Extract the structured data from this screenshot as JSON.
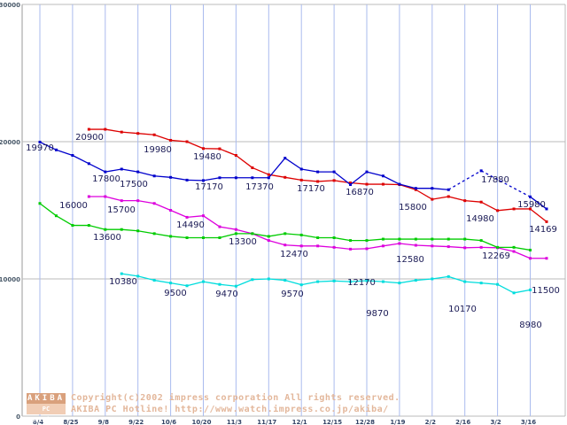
{
  "chart_data": {
    "type": "line",
    "title": "",
    "xlabel": "",
    "ylabel": "",
    "ylim": [
      0,
      30000
    ],
    "yticks": [
      0,
      10000,
      20000,
      30000
    ],
    "grid": true,
    "legend": "none",
    "x_labels": [
      "8/4",
      "8/25",
      "9/8",
      "9/22",
      "10/6",
      "10/20",
      "11/3",
      "11/17",
      "12/1",
      "12/15",
      "12/28",
      "1/19",
      "2/2",
      "2/16",
      "3/2",
      "3/16"
    ],
    "n_points": 32,
    "series": [
      {
        "color": "#dd0000",
        "values": [
          null,
          null,
          null,
          20900,
          20900,
          20700,
          20600,
          20500,
          20100,
          20000,
          19500,
          19480,
          19000,
          18100,
          17600,
          17400,
          17200,
          17100,
          17170,
          17000,
          16900,
          16900,
          16870,
          16500,
          15800,
          16000,
          15700,
          15600,
          14980,
          15100,
          15100,
          14169
        ]
      },
      {
        "color": "#0000cc",
        "values": [
          19970,
          19400,
          19000,
          18400,
          17800,
          18000,
          17800,
          17500,
          17400,
          17200,
          17170,
          17370,
          17370,
          17370,
          17370,
          18800,
          18000,
          17800,
          17800,
          16870,
          17800,
          17500,
          16900,
          16600,
          16600,
          16500,
          null,
          17880,
          null,
          null,
          15980,
          15100
        ]
      },
      {
        "color": "#dd00dd",
        "values": [
          null,
          null,
          null,
          16000,
          16000,
          15700,
          15700,
          15500,
          15000,
          14490,
          14600,
          13800,
          13600,
          13300,
          12800,
          12470,
          12400,
          12400,
          12300,
          12170,
          12200,
          12400,
          12580,
          12450,
          12400,
          12350,
          12269,
          12300,
          12269,
          12000,
          11500,
          11500
        ]
      },
      {
        "color": "#00cc00",
        "values": [
          15500,
          14600,
          13900,
          13900,
          13600,
          13600,
          13500,
          13300,
          13100,
          13000,
          13000,
          13000,
          13300,
          13300,
          13100,
          13300,
          13200,
          13000,
          13000,
          12800,
          12800,
          12900,
          12900,
          12900,
          12900,
          12900,
          12900,
          12800,
          12300,
          12300,
          12100,
          null
        ]
      },
      {
        "color": "#00dddd",
        "values": [
          null,
          null,
          null,
          null,
          null,
          10380,
          10200,
          9900,
          9700,
          9500,
          9800,
          9600,
          9470,
          9950,
          10000,
          9900,
          9570,
          9800,
          9850,
          9800,
          9870,
          9800,
          9700,
          9900,
          10000,
          10170,
          9800,
          9700,
          9600,
          8980,
          9200,
          null
        ]
      }
    ],
    "annotations": [
      "19970",
      "20900",
      "17800",
      "19980",
      "19480",
      "17500",
      "17170",
      "17370",
      "17170",
      "16870",
      "15800",
      "14980",
      "17880",
      "15980",
      "14169",
      "16000",
      "15700",
      "13600",
      "14490",
      "13300",
      "12470",
      "12170",
      "12580",
      "12269",
      "11500",
      "10380",
      "9500",
      "9470",
      "9570",
      "9870",
      "10170",
      "8980"
    ]
  },
  "watermark": {
    "logo_top": "AKIBA",
    "logo_bottom": "PC Hotline!",
    "line1": "Copyright(c)2002 impress corporation All rights reserved.",
    "line2": "AKIBA PC Hotline!  http://www.watch.impress.co.jp/akiba/"
  }
}
